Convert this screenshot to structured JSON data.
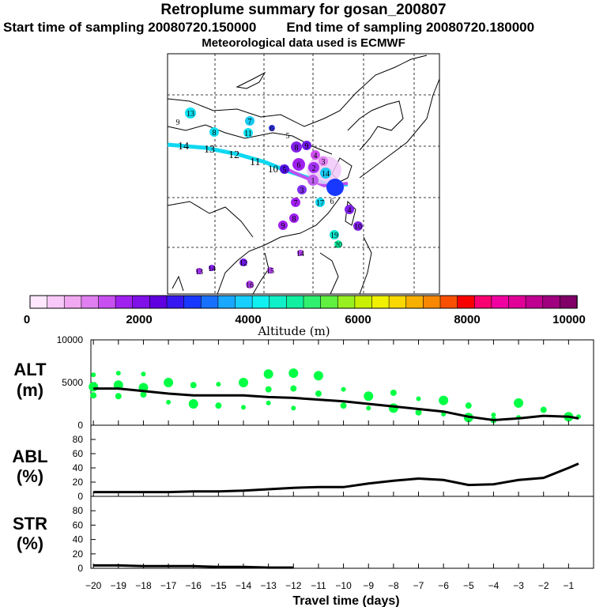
{
  "header": {
    "title": "Retroplume summary for gosan_200807",
    "start_label": "Start time of sampling 20080720.150000",
    "end_label": "End time of sampling 20080720.180000",
    "met_label": "Meteorological data used is ECMWF"
  },
  "colorbar": {
    "tick_labels": [
      "0",
      "2000",
      "4000",
      "6000",
      "8000",
      "10000"
    ],
    "axis_label": "Altitude (m)",
    "colors": [
      "#ffe8ff",
      "#f8c8f8",
      "#f0a8f0",
      "#e080f0",
      "#c850f0",
      "#a020f0",
      "#8010e8",
      "#6000e0",
      "#3818f0",
      "#1838ff",
      "#1870ff",
      "#18a8ff",
      "#18d0ff",
      "#10f0f0",
      "#10f0c8",
      "#10f0a0",
      "#30f070",
      "#60f040",
      "#98f020",
      "#c8f000",
      "#f0f000",
      "#f8d800",
      "#f8b000",
      "#f88800",
      "#f85000",
      "#f80000",
      "#f80070",
      "#f000a0",
      "#e00098",
      "#c00090",
      "#a00080",
      "#800068"
    ]
  },
  "map": {
    "trajectory_labels": [
      "14",
      "13",
      "12",
      "11",
      "10"
    ],
    "point_labels": [
      "13",
      "9",
      "8",
      "11",
      "7",
      "6",
      "5",
      "8",
      "9",
      "4",
      "3",
      "2",
      "6",
      "5",
      "14",
      "1",
      "3",
      "7",
      "17",
      "6",
      "4",
      "10",
      "9",
      "8",
      "19",
      "20",
      "14",
      "15",
      "16",
      "14",
      "13",
      "12"
    ]
  },
  "chart_data": [
    {
      "name": "ALT",
      "type": "line",
      "ylabel": "ALT (m)",
      "ylim": [
        0,
        10000
      ],
      "yticks": [
        "0",
        "5000",
        "10000"
      ],
      "x": [
        -20,
        -19,
        -18,
        -17,
        -16,
        -15,
        -14,
        -13,
        -12,
        -11,
        -10,
        -9,
        -8,
        -7,
        -6,
        -5,
        -4,
        -3,
        -2,
        -1,
        -0.6
      ],
      "values": [
        4300,
        4300,
        4000,
        3700,
        3500,
        3500,
        3500,
        3300,
        3200,
        3000,
        2800,
        2500,
        2200,
        1900,
        1600,
        1000,
        600,
        800,
        1100,
        1000,
        800
      ],
      "scatter": {
        "name": "particle altitudes",
        "x": [
          -20,
          -20,
          -20,
          -19,
          -19,
          -19,
          -18,
          -18,
          -18,
          -17,
          -17,
          -16,
          -16,
          -15,
          -15,
          -14,
          -14,
          -13,
          -13,
          -13,
          -12,
          -12,
          -12,
          -11,
          -11,
          -10,
          -10,
          -9,
          -9,
          -8,
          -8,
          -7,
          -7,
          -6,
          -6,
          -5,
          -5,
          -4,
          -4,
          -3,
          -3,
          -2,
          -1,
          -0.6
        ],
        "values": [
          4500,
          5900,
          3500,
          4700,
          6100,
          3400,
          4400,
          6000,
          3600,
          5000,
          2700,
          4700,
          2500,
          4800,
          2300,
          5000,
          2100,
          4200,
          6000,
          2600,
          4300,
          6100,
          2000,
          3700,
          5800,
          4200,
          2300,
          3400,
          2000,
          3800,
          2000,
          3100,
          1500,
          2900,
          1300,
          2300,
          900,
          1200,
          600,
          2600,
          900,
          1800,
          1000,
          1000
        ]
      },
      "color": "#00ff44"
    },
    {
      "name": "ABL",
      "type": "line",
      "ylabel": "ABL (%)",
      "ylim": [
        0,
        100
      ],
      "yticks": [
        "0",
        "20",
        "40",
        "60",
        "80"
      ],
      "x": [
        -20,
        -19,
        -18,
        -17,
        -16,
        -15,
        -14,
        -13,
        -12,
        -11,
        -10,
        -9,
        -8,
        -7,
        -6,
        -5,
        -4,
        -3,
        -2,
        -1,
        -0.6
      ],
      "values": [
        6,
        6,
        6,
        6,
        7,
        7,
        8,
        10,
        12,
        13,
        13,
        18,
        22,
        25,
        23,
        16,
        17,
        23,
        26,
        40,
        46
      ]
    },
    {
      "name": "STR",
      "type": "line",
      "ylabel": "STR (%)",
      "ylim": [
        0,
        100
      ],
      "yticks": [
        "0",
        "20",
        "40",
        "60",
        "80"
      ],
      "x": [
        -20,
        -19,
        -18,
        -17,
        -16,
        -15,
        -14,
        -13,
        -12
      ],
      "values": [
        4,
        4,
        3,
        3,
        3,
        2,
        2,
        1,
        1
      ]
    }
  ],
  "xaxis": {
    "ticks": [
      -20,
      -19,
      -18,
      -17,
      -16,
      -15,
      -14,
      -13,
      -12,
      -11,
      -10,
      -9,
      -8,
      -7,
      -6,
      -5,
      -4,
      -3,
      -2,
      -1
    ],
    "tick_labels": [
      "−20",
      "−19",
      "−18",
      "−17",
      "−16",
      "−15",
      "−14",
      "−13",
      "−12",
      "−11",
      "−10",
      "−9",
      "−8",
      "−7",
      "−6",
      "−5",
      "−4",
      "−3",
      "−2",
      "−1"
    ],
    "label": "Travel time (days)"
  },
  "panel_labels": {
    "alt": [
      "ALT",
      "(m)"
    ],
    "abl": [
      "ABL",
      "(%)"
    ],
    "str": [
      "STR",
      "(%)"
    ]
  }
}
